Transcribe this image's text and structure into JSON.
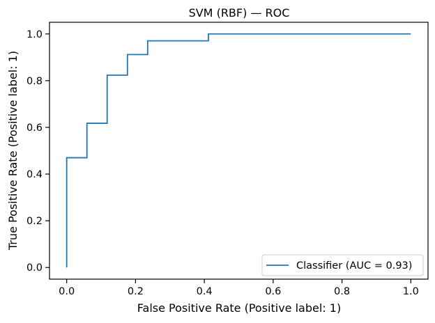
{
  "chart_data": {
    "type": "line",
    "title": "SVM (RBF) — ROC",
    "xlabel": "False Positive Rate (Positive label: 1)",
    "ylabel": "True Positive Rate (Positive label: 1)",
    "xlim": [
      -0.05,
      1.05
    ],
    "ylim": [
      -0.05,
      1.05
    ],
    "xticks": [
      0.0,
      0.2,
      0.4,
      0.6,
      0.8,
      1.0
    ],
    "yticks": [
      0.0,
      0.2,
      0.4,
      0.6,
      0.8,
      1.0
    ],
    "xtick_labels": [
      "0.0",
      "0.2",
      "0.4",
      "0.6",
      "0.8",
      "1.0"
    ],
    "ytick_labels": [
      "0.0",
      "0.2",
      "0.4",
      "0.6",
      "0.8",
      "1.0"
    ],
    "grid": false,
    "legend_position": "lower-right",
    "series": [
      {
        "name": "Classifier (AUC = 0.93)",
        "color": "#1f77b4",
        "x": [
          0.0,
          0.0,
          0.0588,
          0.0588,
          0.1176,
          0.1176,
          0.1765,
          0.1765,
          0.2353,
          0.2353,
          0.4118,
          0.4118,
          1.0
        ],
        "y": [
          0.0,
          0.47,
          0.47,
          0.6176,
          0.6176,
          0.8235,
          0.8235,
          0.9118,
          0.9118,
          0.9706,
          0.9706,
          1.0,
          1.0
        ]
      }
    ]
  }
}
